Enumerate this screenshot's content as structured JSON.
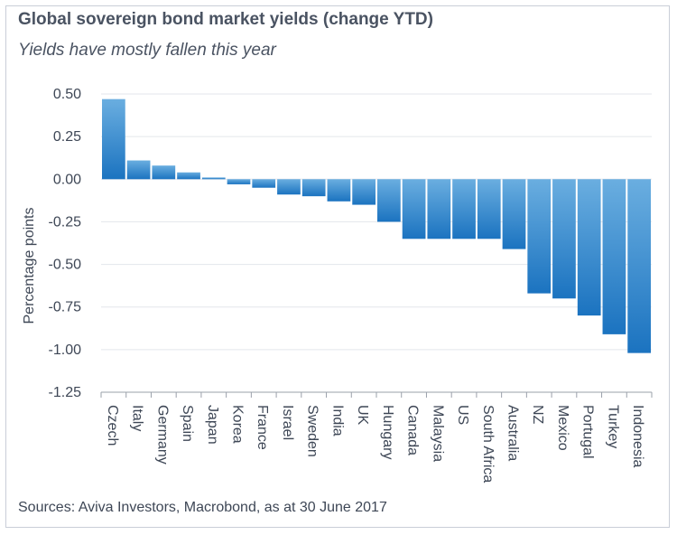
{
  "header": {
    "title": "Global sovereign bond market yields (change YTD)",
    "subtitle": "Yields have mostly fallen this year"
  },
  "footer": {
    "source": "Sources: Aviva Investors, Macrobond, as at 30 June 2017"
  },
  "colors": {
    "bar_top": "#6aaee0",
    "bar_bottom": "#1b73c0",
    "grid": "#e3e6eb",
    "axis": "#9aa0aa",
    "text": "#3e4756"
  },
  "chart_data": {
    "type": "bar",
    "title": "Global sovereign bond market yields (change YTD)",
    "subtitle": "Yields have mostly fallen this year",
    "xlabel": "",
    "ylabel": "Percentage points",
    "ylim": [
      -1.25,
      0.5
    ],
    "yticks": [
      0.5,
      0.25,
      0.0,
      -0.25,
      -0.5,
      -0.75,
      -1.0,
      -1.25
    ],
    "ytick_labels": [
      "0.50",
      "0.25",
      "0.00",
      "-0.25",
      "-0.50",
      "-0.75",
      "-1.00",
      "-1.25"
    ],
    "grid": true,
    "legend": "none",
    "categories": [
      "Czech",
      "Italy",
      "Germany",
      "Spain",
      "Japan",
      "Korea",
      "France",
      "Israel",
      "Sweden",
      "India",
      "UK",
      "Hungary",
      "Canada",
      "Malaysia",
      "US",
      "South Africa",
      "Australia",
      "NZ",
      "Mexico",
      "Portugal",
      "Turkey",
      "Indonesia"
    ],
    "values": [
      0.47,
      0.11,
      0.08,
      0.04,
      0.01,
      -0.03,
      -0.05,
      -0.09,
      -0.1,
      -0.13,
      -0.15,
      -0.25,
      -0.35,
      -0.35,
      -0.35,
      -0.35,
      -0.41,
      -0.67,
      -0.7,
      -0.8,
      -0.91,
      -1.02
    ]
  }
}
